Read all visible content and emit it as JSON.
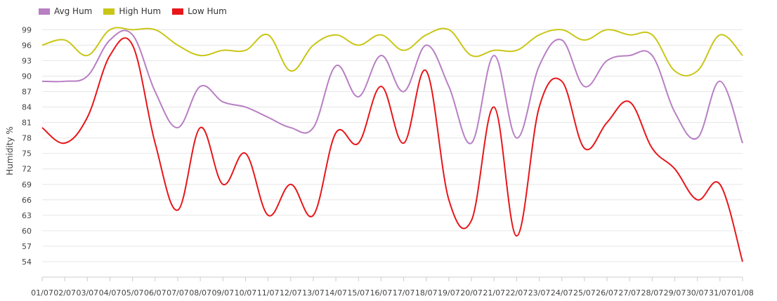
{
  "chart_data": {
    "type": "line",
    "title": "",
    "xlabel": "",
    "ylabel": "Humidity %",
    "ylim": [
      51,
      100
    ],
    "yticks": [
      54,
      57,
      60,
      63,
      66,
      69,
      72,
      75,
      78,
      81,
      84,
      87,
      90,
      93,
      96,
      99
    ],
    "grid": true,
    "legend_position": "top-left",
    "x": [
      "01/07",
      "02/07",
      "03/07",
      "04/07",
      "05/07",
      "06/07",
      "07/07",
      "08/07",
      "09/07",
      "10/07",
      "11/07",
      "12/07",
      "13/07",
      "14/07",
      "15/07",
      "16/07",
      "17/07",
      "18/07",
      "19/07",
      "20/07",
      "21/07",
      "22/07",
      "23/07",
      "24/07",
      "25/07",
      "26/07",
      "27/07",
      "28/07",
      "29/07",
      "30/07",
      "31/07",
      "01/08"
    ],
    "xtick_labels": [
      "01/07",
      "02/07",
      "03/07",
      "04/07",
      "05/07",
      "06/07",
      "07/07",
      "08/07",
      "09/07",
      "10/07",
      "11/07",
      "12/07",
      "13/07",
      "14/07",
      "15/07",
      "16/07",
      "17/07",
      "18/07",
      "19/07",
      "20/07",
      "21/07",
      "22/07",
      "23/07",
      "24/07",
      "25/07",
      "26/07",
      "27/07",
      "28/07",
      "29/07",
      "30/07",
      "31/07",
      "01/08"
    ],
    "series": [
      {
        "name": "Avg Hum",
        "color": "#b87fc3",
        "values": [
          89,
          89,
          90,
          97,
          98,
          87,
          80,
          88,
          85,
          84,
          82,
          80,
          80,
          92,
          86,
          94,
          87,
          96,
          88,
          77,
          94,
          78,
          92,
          97,
          88,
          93,
          94,
          94,
          83,
          78,
          89,
          77
        ]
      },
      {
        "name": "High Hum",
        "color": "#c9c617",
        "values": [
          96,
          97,
          94,
          99,
          99,
          99,
          96,
          94,
          95,
          95,
          98,
          91,
          96,
          98,
          96,
          98,
          95,
          98,
          99,
          94,
          95,
          95,
          98,
          99,
          97,
          99,
          98,
          98,
          91,
          91,
          98,
          94
        ]
      },
      {
        "name": "Low Hum",
        "color": "#e8161a",
        "values": [
          80,
          77,
          82,
          94,
          96,
          77,
          64,
          80,
          69,
          75,
          63,
          69,
          63,
          79,
          77,
          88,
          77,
          91,
          66,
          62,
          84,
          59,
          84,
          89,
          76,
          81,
          85,
          76,
          72,
          66,
          69,
          54
        ]
      }
    ]
  }
}
